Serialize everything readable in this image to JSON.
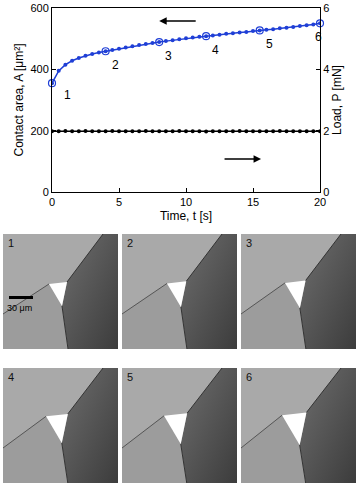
{
  "chart_data": {
    "type": "scatter",
    "x_label": "Time, t [s]",
    "y_label": "Contact area, A [μm²]",
    "y2_label": "Load, P [mN]",
    "x": [
      0,
      0.5,
      1,
      1.5,
      2,
      2.5,
      3,
      3.5,
      4,
      4.5,
      5,
      5.5,
      6,
      6.5,
      7,
      7.5,
      8,
      8.5,
      9,
      9.5,
      10,
      10.5,
      11,
      11.5,
      12,
      12.5,
      13,
      13.5,
      14,
      14.5,
      15,
      15.5,
      16,
      16.5,
      17,
      17.5,
      18,
      18.5,
      19,
      19.5,
      20
    ],
    "series": [
      {
        "color": "#1f3fd6",
        "marker": "circle",
        "line_style": "solid",
        "values": [
          355,
          395,
          415,
          428,
          437,
          444,
          450,
          455,
          459,
          463,
          467,
          471,
          475,
          479,
          483,
          486,
          489,
          492,
          495,
          498,
          501,
          504,
          506,
          508,
          510,
          513,
          516,
          518,
          520,
          522,
          525,
          527,
          529,
          531,
          534,
          536,
          538,
          541,
          544,
          546,
          550
        ]
      },
      {
        "color": "#000000",
        "marker": "circle",
        "line_style": "solid",
        "axis": "y2",
        "values": [
          1.98,
          1.98,
          1.99,
          1.98,
          1.98,
          1.99,
          1.98,
          1.98,
          1.98,
          1.99,
          1.98,
          1.98,
          1.98,
          1.98,
          1.99,
          1.98,
          1.98,
          1.98,
          1.98,
          1.99,
          1.98,
          1.98,
          1.98,
          1.97,
          1.98,
          1.98,
          1.98,
          1.98,
          1.99,
          1.98,
          1.98,
          1.98,
          1.98,
          1.98,
          1.99,
          1.98,
          1.98,
          1.98,
          1.98,
          1.98,
          1.98
        ]
      }
    ],
    "xlim": [
      0,
      20
    ],
    "xticks": [
      0,
      5,
      10,
      15,
      20
    ],
    "ylim": [
      0,
      600
    ],
    "yticks": [
      0,
      200,
      400,
      600
    ],
    "y2lim": [
      0,
      6
    ],
    "y2ticks": [
      0,
      2,
      4,
      6
    ],
    "grid": false,
    "annotations": [
      {
        "text": "1",
        "x": 0,
        "y": 355
      },
      {
        "text": "2",
        "x": 4,
        "y": 459
      },
      {
        "text": "3",
        "x": 8,
        "y": 489
      },
      {
        "text": "4",
        "x": 11.5,
        "y": 508
      },
      {
        "text": "5",
        "x": 15.5,
        "y": 527
      },
      {
        "text": "6",
        "x": 20,
        "y": 550
      }
    ]
  },
  "panels": [
    {
      "label": "1"
    },
    {
      "label": "2"
    },
    {
      "label": "3"
    },
    {
      "label": "4"
    },
    {
      "label": "5"
    },
    {
      "label": "6"
    }
  ],
  "scale_bar": "30 μm"
}
